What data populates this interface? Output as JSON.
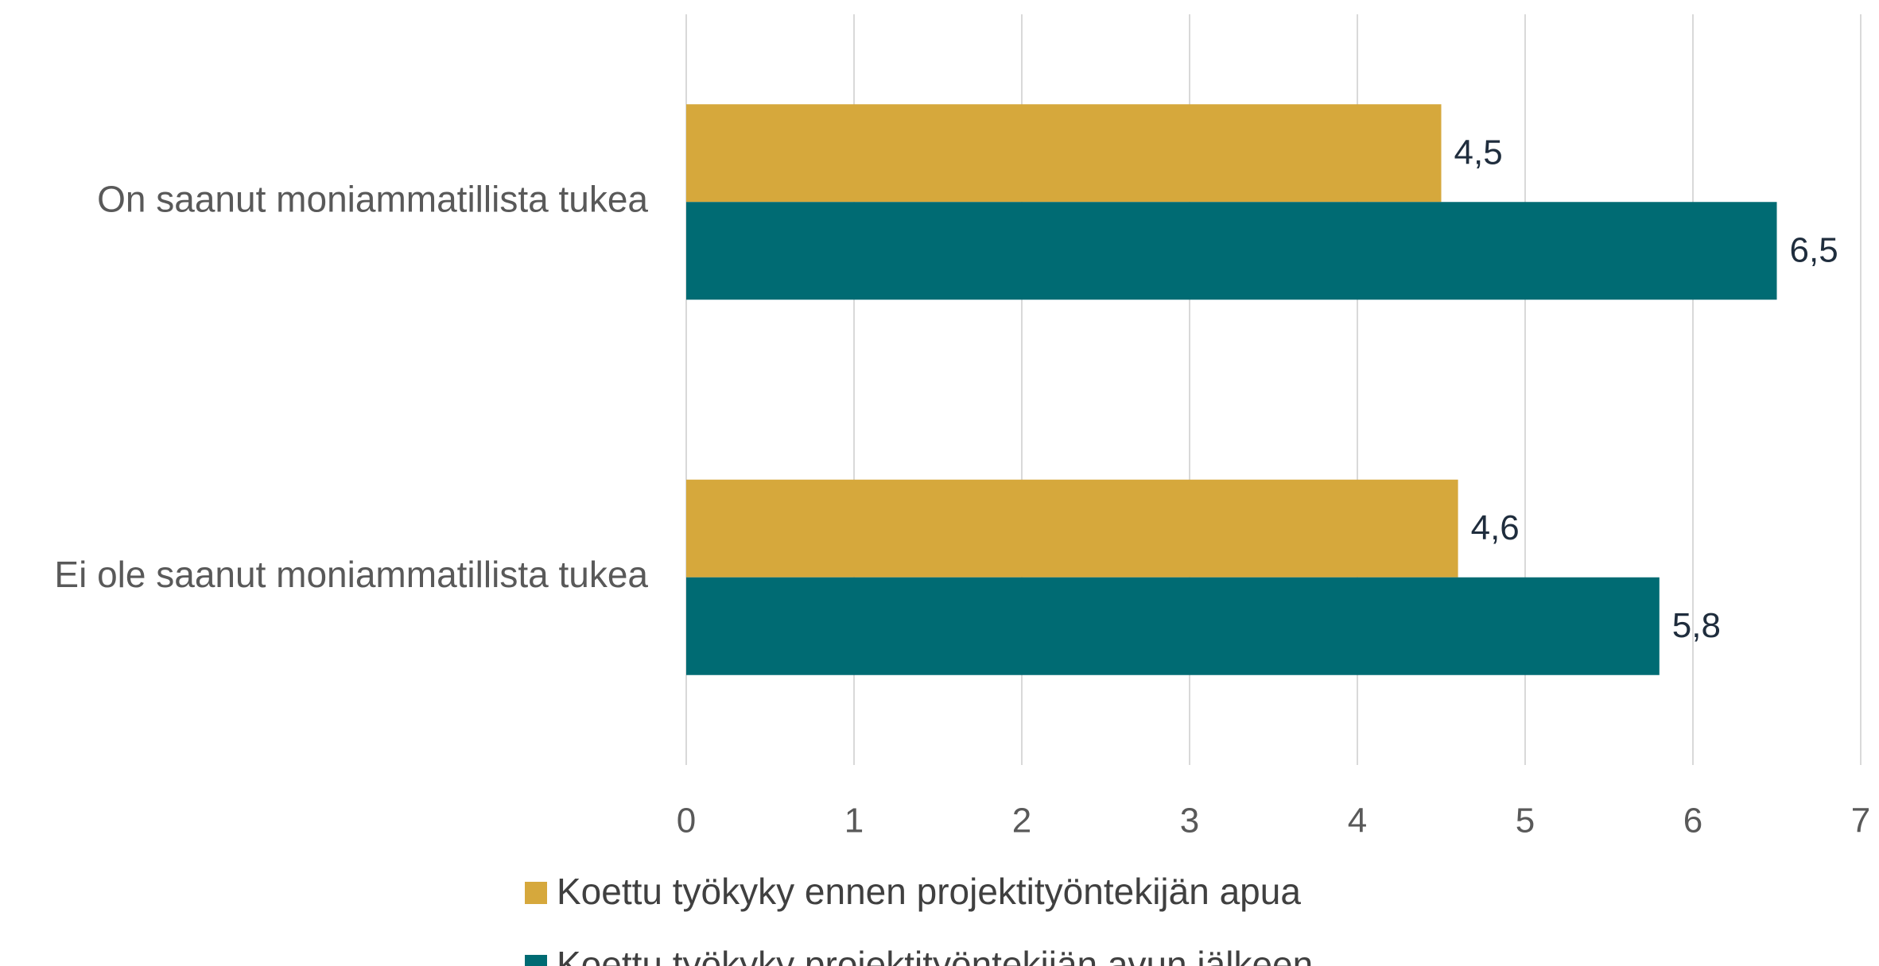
{
  "chart_data": {
    "type": "bar",
    "orientation": "horizontal",
    "categories": [
      "On saanut moniammatillista tukea",
      "Ei ole saanut moniammatillista tukea"
    ],
    "series": [
      {
        "name": "Koettu työkyky ennen projektityöntekijän apua",
        "color": "#d6a83c",
        "values": [
          4.5,
          4.6
        ],
        "value_labels": [
          "4,5",
          "4,6"
        ]
      },
      {
        "name": "Koettu työkyky projektityöntekijän avun jälkeen",
        "color": "#006b73",
        "values": [
          6.5,
          5.8
        ],
        "value_labels": [
          "6,5",
          "5,8"
        ]
      }
    ],
    "xlim": [
      0,
      7
    ],
    "xticks": [
      0,
      1,
      2,
      3,
      4,
      5,
      6,
      7
    ],
    "grid": true,
    "legend": "bottom"
  }
}
